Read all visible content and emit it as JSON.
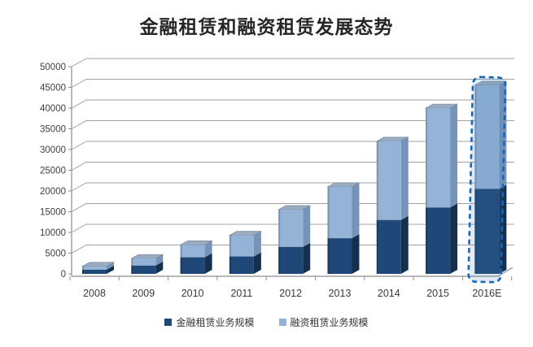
{
  "chart_data": {
    "type": "bar",
    "stacked": true,
    "pseudo_3d": true,
    "title": "金融租赁和融资租赁发展态势",
    "categories": [
      "2008",
      "2009",
      "2010",
      "2011",
      "2012",
      "2013",
      "2014",
      "2015",
      "2016E"
    ],
    "series": [
      {
        "name": "金融租赁业务规模",
        "color": "#1F4777",
        "side_color": "#15304F",
        "values": [
          1000,
          2000,
          4000,
          4200,
          6500,
          8600,
          13000,
          16000,
          20500
        ]
      },
      {
        "name": "融资租赁业务规模",
        "color": "#95B3D7",
        "side_color": "#7693B8",
        "top_color": "#9AACBE",
        "values": [
          800,
          1700,
          3000,
          5100,
          9000,
          12400,
          19000,
          24000,
          25000
        ]
      }
    ],
    "stack_totals": [
      1800,
      3700,
      7000,
      9300,
      15500,
      21000,
      32000,
      40000,
      45500
    ],
    "ylim": [
      0,
      50000
    ],
    "ytick_step": 5000,
    "yticks": [
      0,
      5000,
      10000,
      15000,
      20000,
      25000,
      30000,
      35000,
      40000,
      45000,
      50000
    ],
    "grid": true,
    "legend_position": "bottom",
    "forecast": {
      "category": "2016E",
      "style": "dashed-outline",
      "outline_color": "#1766BE"
    }
  },
  "colors": {
    "background": "#FFFFFF",
    "gridline": "#A0A0A0",
    "axis": "#8C8C8C",
    "axis_text": "#404040",
    "title_text": "#262626"
  }
}
